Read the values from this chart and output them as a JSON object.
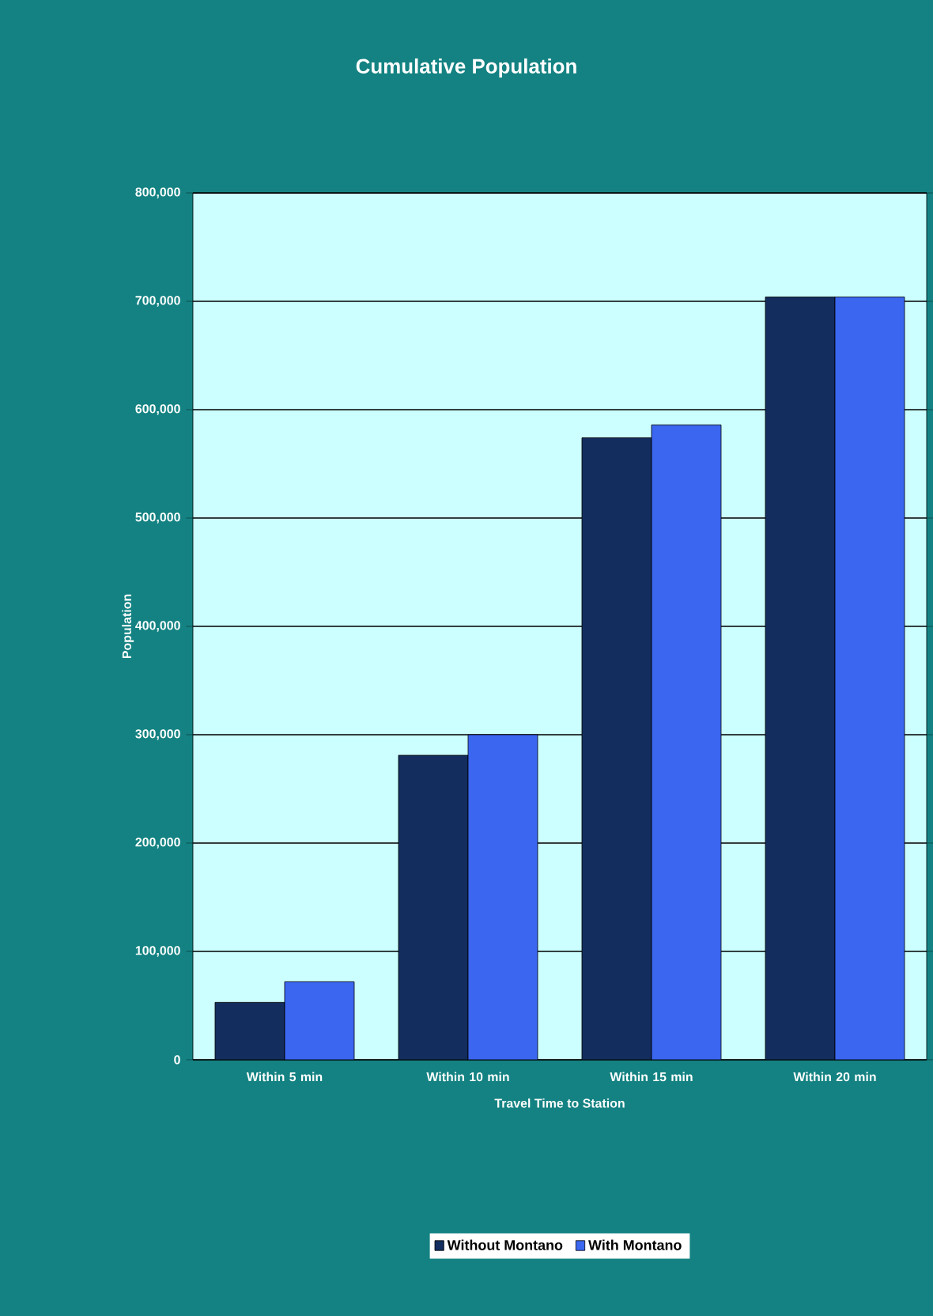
{
  "chart_data": {
    "type": "bar",
    "title": "Cumulative Population",
    "xlabel": "Travel Time to Station",
    "ylabel": "Population",
    "categories": [
      "Within 5 min",
      "Within 10 min",
      "Within 15 min",
      "Within 20 min"
    ],
    "series": [
      {
        "name": "Without Montano",
        "color": "#132e5e",
        "values": [
          53000,
          281000,
          574000,
          704000
        ]
      },
      {
        "name": "With Montano",
        "color": "#3a66f0",
        "values": [
          72000,
          300000,
          586000,
          704000
        ]
      }
    ],
    "ylim": [
      0,
      800000
    ],
    "yticks": [
      {
        "value": 0,
        "label": "0"
      },
      {
        "value": 100000,
        "label": "100,000"
      },
      {
        "value": 200000,
        "label": "200,000"
      },
      {
        "value": 300000,
        "label": "300,000"
      },
      {
        "value": 400000,
        "label": "400,000"
      },
      {
        "value": 500000,
        "label": "500,000"
      },
      {
        "value": 600000,
        "label": "600,000"
      },
      {
        "value": 700000,
        "label": "700,000"
      },
      {
        "value": 800000,
        "label": "800,000"
      }
    ],
    "grid": "y",
    "legend": "bottom"
  }
}
